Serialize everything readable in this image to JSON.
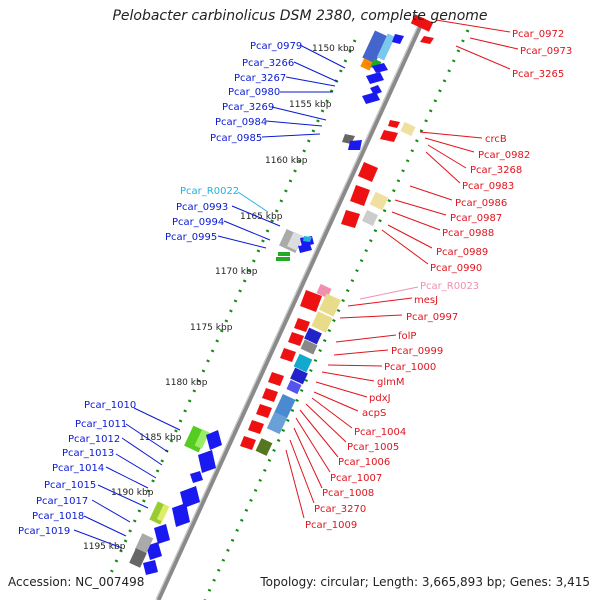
{
  "title": "Pelobacter carbinolicus DSM 2380, complete genome",
  "accession": "Accession: NC_007498",
  "summary": "Topology: circular; Length: 3,665,893 bp; Genes: 3,415",
  "colors": {
    "left_label": "#0a1ad2",
    "right_label": "#e0141e",
    "rna_left": "#22b2e0",
    "rna_right": "#f090b0",
    "tick": "#138a13",
    "backbone": "#8a8a8a"
  },
  "kbp_ticks": [
    "1150 kbp",
    "1155 kbp",
    "1160 kbp",
    "1165 kbp",
    "1170 kbp",
    "1175 kbp",
    "1180 kbp",
    "1185 kbp",
    "1190 kbp",
    "1195 kbp"
  ],
  "left_labels": [
    "Pcar_0979",
    "Pcar_3266",
    "Pcar_3267",
    "Pcar_0980",
    "Pcar_3269",
    "Pcar_0984",
    "Pcar_0985",
    "Pcar_R0022",
    "Pcar_0993",
    "Pcar_0994",
    "Pcar_0995",
    "Pcar_1010",
    "Pcar_1011",
    "Pcar_1012",
    "Pcar_1013",
    "Pcar_1014",
    "Pcar_1015",
    "Pcar_1017",
    "Pcar_1018",
    "Pcar_1019"
  ],
  "right_labels": [
    "Pcar_0972",
    "Pcar_0973",
    "Pcar_3265",
    "crcB",
    "Pcar_0982",
    "Pcar_3268",
    "Pcar_0983",
    "Pcar_0986",
    "Pcar_0987",
    "Pcar_0988",
    "Pcar_0989",
    "Pcar_0990",
    "Pcar_R0023",
    "mesJ",
    "Pcar_0997",
    "folP",
    "Pcar_0999",
    "Pcar_1000",
    "glmM",
    "pdxJ",
    "acpS",
    "Pcar_1004",
    "Pcar_1005",
    "Pcar_1006",
    "Pcar_1007",
    "Pcar_1008",
    "Pcar_3270",
    "Pcar_1009"
  ]
}
